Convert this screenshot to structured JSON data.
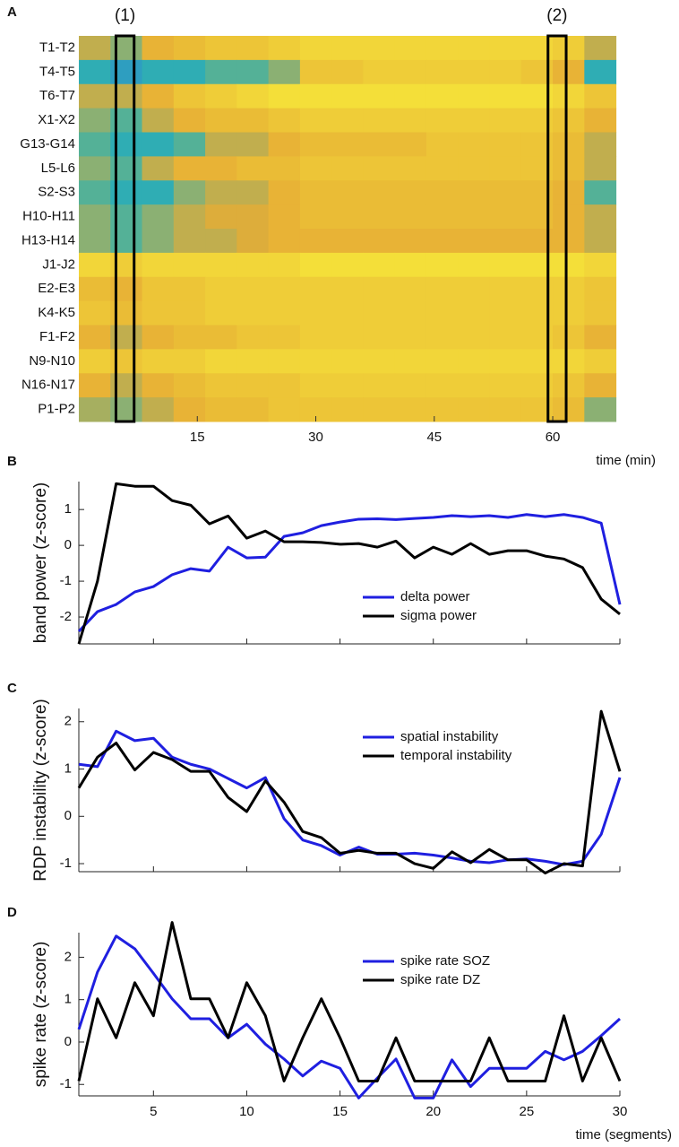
{
  "chart_data": [
    {
      "type": "heatmap",
      "panel_label": "A",
      "rows": [
        "T1-T2",
        "T4-T5",
        "T6-T7",
        "X1-X2",
        "G13-G14",
        "L5-L6",
        "S2-S3",
        "H10-H11",
        "H13-H14",
        "J1-J2",
        "E2-E3",
        "K4-K5",
        "F1-F2",
        "N9-N10",
        "N16-N17",
        "P1-P2"
      ],
      "x_bins": [
        0,
        4,
        8,
        12,
        16,
        20,
        24,
        28,
        32,
        36,
        40,
        44,
        48,
        52,
        56,
        60,
        64,
        68
      ],
      "values": [
        [
          0.6,
          0.5,
          0.7,
          0.75,
          0.8,
          0.8,
          0.85,
          0.9,
          0.9,
          0.9,
          0.9,
          0.9,
          0.9,
          0.9,
          0.9,
          0.85,
          0.6
        ],
        [
          0.3,
          0.2,
          0.3,
          0.3,
          0.4,
          0.4,
          0.5,
          0.8,
          0.8,
          0.85,
          0.85,
          0.85,
          0.85,
          0.85,
          0.8,
          0.7,
          0.3
        ],
        [
          0.6,
          0.6,
          0.7,
          0.8,
          0.85,
          0.9,
          0.95,
          0.95,
          0.95,
          0.95,
          0.95,
          0.95,
          0.95,
          0.95,
          0.95,
          0.9,
          0.8
        ],
        [
          0.5,
          0.4,
          0.6,
          0.7,
          0.75,
          0.75,
          0.8,
          0.85,
          0.85,
          0.85,
          0.85,
          0.85,
          0.85,
          0.85,
          0.85,
          0.8,
          0.7
        ],
        [
          0.4,
          0.3,
          0.3,
          0.4,
          0.6,
          0.6,
          0.7,
          0.75,
          0.75,
          0.75,
          0.75,
          0.8,
          0.8,
          0.8,
          0.8,
          0.75,
          0.6
        ],
        [
          0.5,
          0.4,
          0.6,
          0.7,
          0.7,
          0.75,
          0.75,
          0.8,
          0.8,
          0.8,
          0.8,
          0.8,
          0.8,
          0.8,
          0.8,
          0.75,
          0.6
        ],
        [
          0.4,
          0.3,
          0.3,
          0.5,
          0.6,
          0.6,
          0.7,
          0.75,
          0.75,
          0.75,
          0.75,
          0.75,
          0.75,
          0.75,
          0.75,
          0.7,
          0.4
        ],
        [
          0.5,
          0.4,
          0.5,
          0.6,
          0.65,
          0.65,
          0.7,
          0.75,
          0.75,
          0.75,
          0.75,
          0.75,
          0.75,
          0.75,
          0.75,
          0.7,
          0.6
        ],
        [
          0.5,
          0.4,
          0.5,
          0.6,
          0.6,
          0.65,
          0.7,
          0.7,
          0.7,
          0.7,
          0.7,
          0.7,
          0.7,
          0.7,
          0.7,
          0.7,
          0.6
        ],
        [
          0.9,
          0.85,
          0.9,
          0.9,
          0.9,
          0.9,
          0.9,
          0.95,
          0.95,
          0.95,
          0.95,
          0.95,
          0.95,
          0.95,
          0.95,
          0.95,
          0.9
        ],
        [
          0.75,
          0.7,
          0.8,
          0.8,
          0.85,
          0.85,
          0.85,
          0.85,
          0.85,
          0.85,
          0.85,
          0.85,
          0.85,
          0.85,
          0.85,
          0.85,
          0.8
        ],
        [
          0.8,
          0.75,
          0.8,
          0.8,
          0.85,
          0.85,
          0.85,
          0.85,
          0.85,
          0.85,
          0.85,
          0.85,
          0.85,
          0.85,
          0.85,
          0.85,
          0.8
        ],
        [
          0.7,
          0.6,
          0.7,
          0.75,
          0.75,
          0.8,
          0.8,
          0.85,
          0.85,
          0.85,
          0.85,
          0.85,
          0.85,
          0.85,
          0.85,
          0.8,
          0.7
        ],
        [
          0.85,
          0.8,
          0.85,
          0.85,
          0.9,
          0.9,
          0.9,
          0.9,
          0.9,
          0.9,
          0.9,
          0.9,
          0.9,
          0.9,
          0.9,
          0.9,
          0.85
        ],
        [
          0.7,
          0.6,
          0.7,
          0.75,
          0.8,
          0.8,
          0.8,
          0.85,
          0.85,
          0.85,
          0.85,
          0.85,
          0.85,
          0.85,
          0.85,
          0.8,
          0.7
        ],
        [
          0.55,
          0.5,
          0.6,
          0.7,
          0.75,
          0.75,
          0.8,
          0.8,
          0.8,
          0.8,
          0.8,
          0.8,
          0.8,
          0.8,
          0.8,
          0.75,
          0.5
        ]
      ],
      "colormap": [
        "#2c7fd9",
        "#2fb2b0",
        "#e6ad35",
        "#f7e83a"
      ],
      "xlim": [
        0,
        68.5
      ],
      "xticks": [
        15,
        30,
        45,
        60
      ],
      "x_label": "time (min)",
      "annotations": [
        {
          "label": "(1)",
          "x": [
            4.7,
            7
          ]
        },
        {
          "label": "(2)",
          "x": [
            59.4,
            61.7
          ]
        }
      ]
    },
    {
      "type": "line",
      "panel_label": "B",
      "y_label": "band power (z-score)",
      "x": [
        1,
        2,
        3,
        4,
        5,
        6,
        7,
        8,
        9,
        10,
        11,
        12,
        13,
        14,
        15,
        16,
        17,
        18,
        19,
        20,
        21,
        22,
        23,
        24,
        25,
        26,
        27,
        28,
        29,
        30
      ],
      "xlim": [
        1,
        30
      ],
      "xticks": [
        5,
        10,
        15,
        20,
        25,
        30
      ],
      "show_xtick_labels": false,
      "ylim": [
        -2.75,
        1.78
      ],
      "yticks": [
        -2,
        -1,
        0,
        1
      ],
      "legend": "lower right",
      "series": [
        {
          "name": "delta power",
          "color": "#1f1fe0",
          "values": [
            -2.4,
            -1.85,
            -1.65,
            -1.3,
            -1.15,
            -0.82,
            -0.65,
            -0.72,
            -0.05,
            -0.35,
            -0.33,
            0.25,
            0.35,
            0.55,
            0.65,
            0.73,
            0.74,
            0.72,
            0.75,
            0.78,
            0.83,
            0.8,
            0.83,
            0.78,
            0.86,
            0.8,
            0.86,
            0.78,
            0.62,
            -1.65
          ]
        },
        {
          "name": "sigma power",
          "color": "#000000",
          "values": [
            -2.75,
            -1.0,
            1.72,
            1.65,
            1.65,
            1.25,
            1.12,
            0.6,
            0.82,
            0.2,
            0.4,
            0.1,
            0.1,
            0.08,
            0.03,
            0.05,
            -0.05,
            0.12,
            -0.35,
            -0.05,
            -0.25,
            0.05,
            -0.25,
            -0.15,
            -0.15,
            -0.3,
            -0.38,
            -0.62,
            -1.5,
            -1.92
          ]
        }
      ]
    },
    {
      "type": "line",
      "panel_label": "C",
      "y_label": "RDP instability (z-score)",
      "x": [
        1,
        2,
        3,
        4,
        5,
        6,
        7,
        8,
        9,
        10,
        11,
        12,
        13,
        14,
        15,
        16,
        17,
        18,
        19,
        20,
        21,
        22,
        23,
        24,
        25,
        26,
        27,
        28,
        29,
        30
      ],
      "xlim": [
        1,
        30
      ],
      "xticks": [
        5,
        10,
        15,
        20,
        25,
        30
      ],
      "show_xtick_labels": false,
      "ylim": [
        -1.17,
        2.28
      ],
      "yticks": [
        -1,
        0,
        1,
        2
      ],
      "legend": "upper right",
      "series": [
        {
          "name": "spatial instability",
          "color": "#1f1fe0",
          "values": [
            1.1,
            1.05,
            1.8,
            1.6,
            1.65,
            1.25,
            1.1,
            1.0,
            0.8,
            0.6,
            0.82,
            -0.05,
            -0.5,
            -0.62,
            -0.82,
            -0.65,
            -0.8,
            -0.8,
            -0.78,
            -0.82,
            -0.88,
            -0.95,
            -0.98,
            -0.92,
            -0.9,
            -0.95,
            -1.02,
            -0.95,
            -0.38,
            0.82
          ]
        },
        {
          "name": "temporal instability",
          "color": "#000000",
          "values": [
            0.6,
            1.25,
            1.55,
            0.98,
            1.35,
            1.2,
            0.95,
            0.95,
            0.4,
            0.1,
            0.75,
            0.3,
            -0.32,
            -0.45,
            -0.78,
            -0.72,
            -0.78,
            -0.78,
            -1.0,
            -1.1,
            -0.75,
            -0.98,
            -0.7,
            -0.92,
            -0.92,
            -1.2,
            -1.0,
            -1.05,
            2.22,
            0.95
          ]
        }
      ]
    },
    {
      "type": "line",
      "panel_label": "D",
      "y_label": "spike rate (z-score)",
      "x_label": "time (segments)",
      "x": [
        1,
        2,
        3,
        4,
        5,
        6,
        7,
        8,
        9,
        10,
        11,
        12,
        13,
        14,
        15,
        16,
        17,
        18,
        19,
        20,
        21,
        22,
        23,
        24,
        25,
        26,
        27,
        28,
        29,
        30
      ],
      "xlim": [
        1,
        30
      ],
      "xticks": [
        5,
        10,
        15,
        20,
        25,
        30
      ],
      "show_xtick_labels": true,
      "ylim": [
        -1.27,
        2.58
      ],
      "yticks": [
        -1,
        0,
        1,
        2
      ],
      "legend": "upper right",
      "series": [
        {
          "name": "spike rate SOZ",
          "color": "#1f1fe0",
          "values": [
            0.3,
            1.65,
            2.5,
            2.2,
            1.62,
            1.02,
            0.55,
            0.55,
            0.1,
            0.42,
            -0.05,
            -0.4,
            -0.8,
            -0.45,
            -0.62,
            -1.32,
            -0.85,
            -0.4,
            -1.32,
            -1.32,
            -0.42,
            -1.05,
            -0.62,
            -0.62,
            -0.62,
            -0.22,
            -0.42,
            -0.22,
            0.15,
            0.55
          ]
        },
        {
          "name": "spike rate DZ",
          "color": "#000000",
          "values": [
            -0.92,
            1.02,
            0.1,
            1.4,
            0.62,
            2.82,
            1.02,
            1.02,
            0.1,
            1.4,
            0.62,
            -0.92,
            0.1,
            1.02,
            0.1,
            -0.92,
            -0.92,
            0.1,
            -0.92,
            -0.92,
            -0.92,
            -0.92,
            0.1,
            -0.92,
            -0.92,
            -0.92,
            0.62,
            -0.92,
            0.1,
            -0.92
          ]
        }
      ]
    }
  ]
}
